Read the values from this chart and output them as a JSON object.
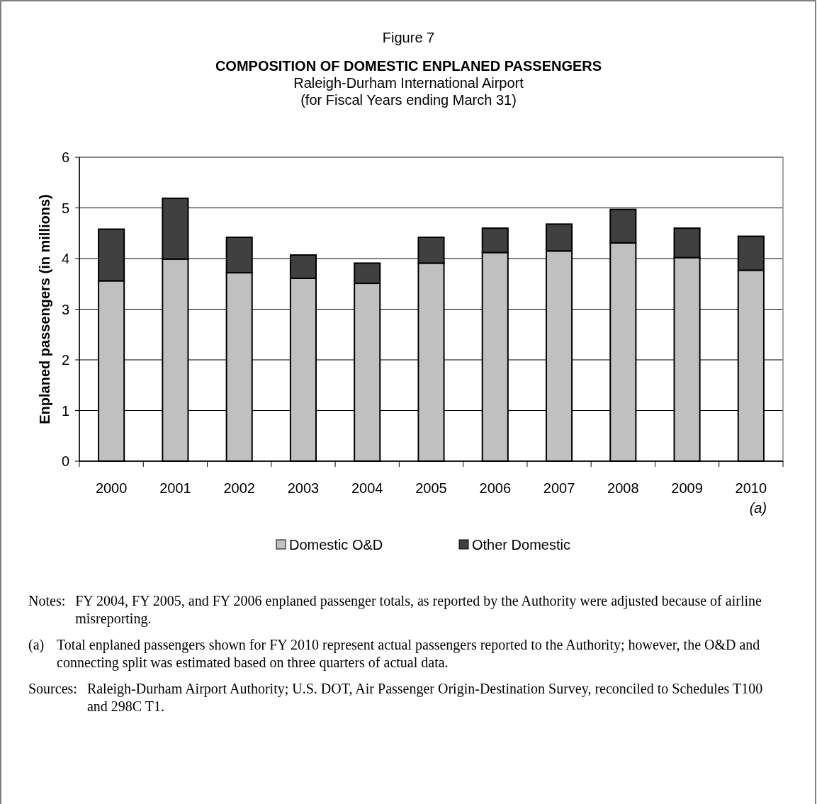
{
  "chart_data": {
    "type": "bar",
    "stacked": true,
    "title": "Figure 7",
    "subtitle": "COMPOSITION OF DOMESTIC ENPLANED PASSENGERS\nRaleigh-Durham International Airport\n(for Fiscal Years ending March 31)",
    "ylabel": "Enplaned passengers (in millions)",
    "categories": [
      "2000",
      "2001",
      "2002",
      "2003",
      "2004",
      "2005",
      "2006",
      "2007",
      "2008",
      "2009",
      "2010 (a)"
    ],
    "series": [
      {
        "name": "Domestic O&D",
        "color": "#c0c0c0",
        "values": [
          3.56,
          3.99,
          3.72,
          3.61,
          3.51,
          3.91,
          4.12,
          4.15,
          4.31,
          4.02,
          3.77
        ]
      },
      {
        "name": "Other Domestic",
        "color": "#404040",
        "values": [
          1.02,
          1.2,
          0.7,
          0.46,
          0.4,
          0.51,
          0.48,
          0.53,
          0.66,
          0.58,
          0.67
        ]
      }
    ],
    "ylim": [
      0,
      6
    ],
    "yticks": [
      0,
      1,
      2,
      3,
      4,
      5,
      6
    ],
    "grid": "y",
    "legend": "bottom",
    "annotations": [
      "Notes:\tFY 2004, FY 2005, and FY 2006 enplaned passenger totals, as reported by the Authority were adjusted because of airline misreporting.",
      "(a)\tTotal enplaned passengers shown for FY 2010 represent actual passengers reported to the Authority; however, the O&D and connecting split was estimated based on three quarters of actual data.",
      "Sources:\tRaleigh-Durham Airport Authority; U.S. DOT, Air Passenger Origin-Destination Survey, reconciled to Schedules T100 and 298C T1."
    ]
  }
}
